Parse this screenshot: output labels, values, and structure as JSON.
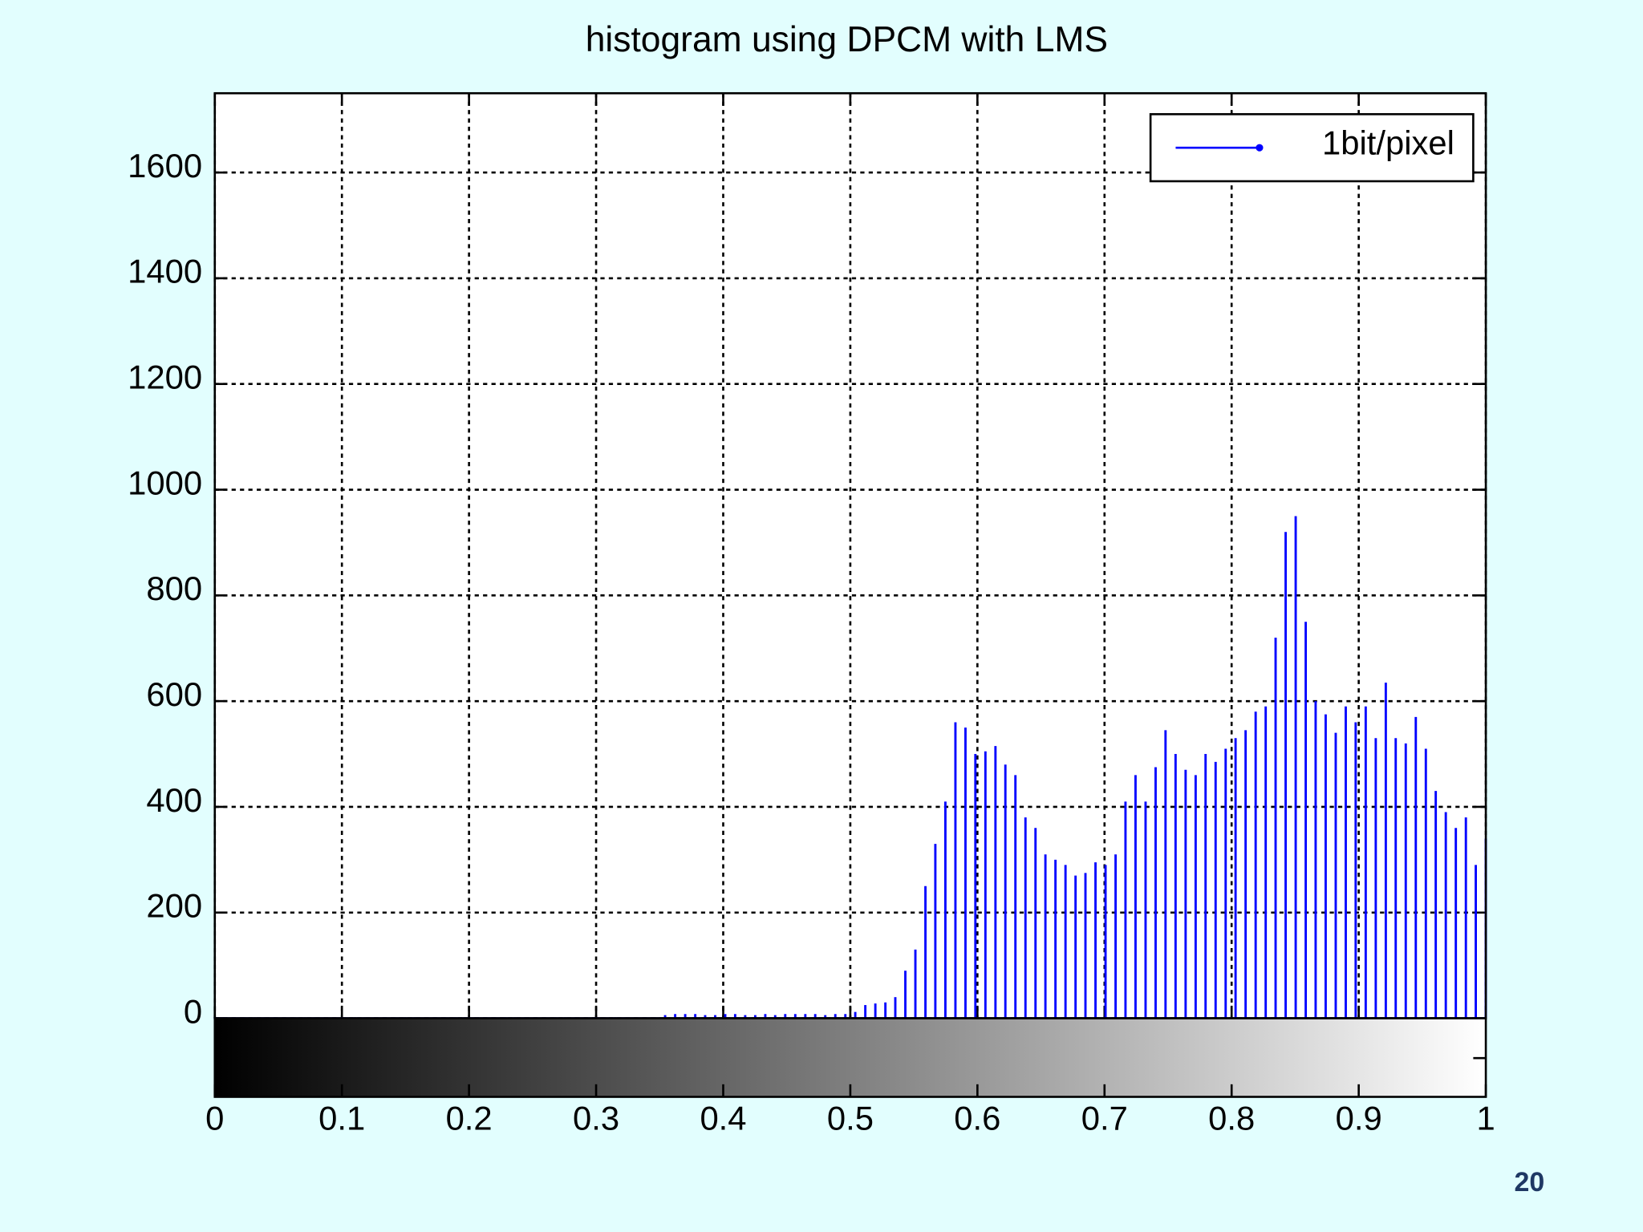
{
  "chart_data": {
    "type": "stem",
    "title": "histogram using DPCM with LMS",
    "x": [
      0,
      0.0079,
      0.0157,
      0.0236,
      0.0315,
      0.0394,
      0.0472,
      0.0551,
      0.063,
      0.0709,
      0.0787,
      0.0866,
      0.0945,
      0.1024,
      0.1102,
      0.1181,
      0.126,
      0.1339,
      0.1417,
      0.1496,
      0.1575,
      0.1654,
      0.1732,
      0.1811,
      0.189,
      0.1969,
      0.2047,
      0.2126,
      0.2205,
      0.2283,
      0.2362,
      0.2441,
      0.252,
      0.2598,
      0.2677,
      0.2756,
      0.2835,
      0.2913,
      0.2992,
      0.3071,
      0.315,
      0.3228,
      0.3307,
      0.3386,
      0.3465,
      0.3543,
      0.3622,
      0.3701,
      0.378,
      0.3858,
      0.3937,
      0.4016,
      0.4094,
      0.4173,
      0.4252,
      0.4331,
      0.4409,
      0.4488,
      0.4567,
      0.4646,
      0.4724,
      0.4803,
      0.4882,
      0.4961,
      0.5039,
      0.5118,
      0.5197,
      0.5276,
      0.5354,
      0.5433,
      0.5512,
      0.5591,
      0.5669,
      0.5748,
      0.5827,
      0.5906,
      0.5984,
      0.6063,
      0.6142,
      0.622,
      0.6299,
      0.6378,
      0.6457,
      0.6535,
      0.6614,
      0.6693,
      0.6772,
      0.685,
      0.6929,
      0.7008,
      0.7087,
      0.7165,
      0.7244,
      0.7323,
      0.7402,
      0.748,
      0.7559,
      0.7638,
      0.7717,
      0.7795,
      0.7874,
      0.7953,
      0.8031,
      0.811,
      0.8189,
      0.8268,
      0.8346,
      0.8425,
      0.8504,
      0.8583,
      0.8661,
      0.874,
      0.8819,
      0.8898,
      0.8976,
      0.9055,
      0.9134,
      0.9213,
      0.9291,
      0.937,
      0.9449,
      0.9528,
      0.9606,
      0.9685,
      0.9764,
      0.9843,
      0.9921,
      1
    ],
    "series": [
      {
        "name": "1bit/pixel",
        "color": "#0000ff",
        "values": [
          2,
          2,
          2,
          2,
          2,
          2,
          2,
          2,
          2,
          2,
          2,
          2,
          2,
          2,
          2,
          2,
          2,
          2,
          2,
          2,
          2,
          2,
          2,
          2,
          2,
          2,
          2,
          2,
          2,
          2,
          2,
          2,
          2,
          2,
          2,
          2,
          2,
          2,
          2,
          2,
          2,
          2,
          2,
          2,
          2,
          6,
          8,
          8,
          8,
          6,
          6,
          8,
          8,
          6,
          6,
          8,
          6,
          8,
          8,
          8,
          8,
          6,
          8,
          8,
          12,
          25,
          28,
          30,
          40,
          90,
          130,
          250,
          330,
          410,
          560,
          550,
          500,
          505,
          515,
          480,
          460,
          380,
          360,
          310,
          300,
          290,
          270,
          275,
          295,
          290,
          310,
          410,
          460,
          410,
          475,
          545,
          500,
          470,
          460,
          500,
          485,
          510,
          530,
          545,
          580,
          590,
          720,
          920,
          950,
          750,
          600,
          575,
          540,
          590,
          560,
          590,
          530,
          635,
          530,
          520,
          570,
          510,
          430,
          390,
          360,
          380,
          290,
          340
        ]
      }
    ],
    "xlim": [
      0,
      1
    ],
    "xticks": [
      0,
      0.1,
      0.2,
      0.3,
      0.4,
      0.5,
      0.6,
      0.7,
      0.8,
      0.9,
      1
    ],
    "ylim": [
      0,
      1750
    ],
    "yticks": [
      0,
      200,
      400,
      600,
      800,
      1000,
      1200,
      1400,
      1600
    ],
    "grid": true,
    "legend": "upper right"
  },
  "page_number": "20"
}
